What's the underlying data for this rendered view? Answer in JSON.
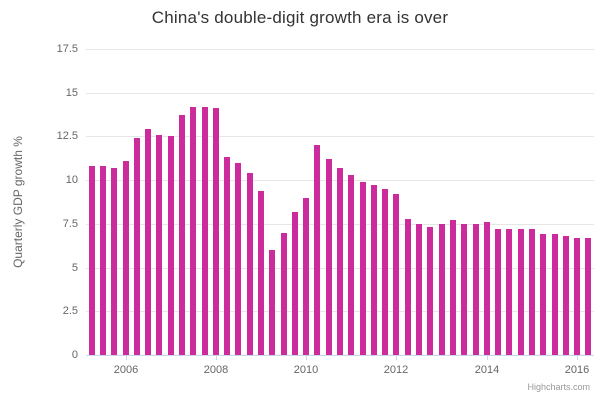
{
  "chart_data": {
    "type": "bar",
    "title": "China's double-digit growth era is over",
    "xlabel": "",
    "ylabel": "Quarterly GDP growth %",
    "ylim": [
      0,
      17.5
    ],
    "grid": true,
    "legend": "none",
    "bar_color": "#cc2b9c",
    "y_tick_labels": [
      "0",
      "2.5",
      "5",
      "7.5",
      "10",
      "12.5",
      "15",
      "17.5"
    ],
    "y_tick_values": [
      0,
      2.5,
      5,
      7.5,
      10,
      12.5,
      15,
      17.5
    ],
    "x_tick_labels": [
      "2006",
      "2008",
      "2010",
      "2012",
      "2014",
      "2016"
    ],
    "x_tick_bar_index": [
      3,
      11,
      19,
      27,
      35,
      43
    ],
    "categories": [
      "2005 Q1",
      "2005 Q2",
      "2005 Q3",
      "2005 Q4",
      "2006 Q1",
      "2006 Q2",
      "2006 Q3",
      "2006 Q4",
      "2007 Q1",
      "2007 Q2",
      "2007 Q3",
      "2007 Q4",
      "2008 Q1",
      "2008 Q2",
      "2008 Q3",
      "2008 Q4",
      "2009 Q1",
      "2009 Q2",
      "2009 Q3",
      "2009 Q4",
      "2010 Q1",
      "2010 Q2",
      "2010 Q3",
      "2010 Q4",
      "2011 Q1",
      "2011 Q2",
      "2011 Q3",
      "2011 Q4",
      "2012 Q1",
      "2012 Q2",
      "2012 Q3",
      "2012 Q4",
      "2013 Q1",
      "2013 Q2",
      "2013 Q3",
      "2013 Q4",
      "2014 Q1",
      "2014 Q2",
      "2014 Q3",
      "2014 Q4",
      "2015 Q1",
      "2015 Q2",
      "2015 Q3",
      "2015 Q4",
      "2016 Q1"
    ],
    "values": [
      10.8,
      10.8,
      10.7,
      11.1,
      12.4,
      12.9,
      12.6,
      12.5,
      13.7,
      14.2,
      14.2,
      14.1,
      11.3,
      11.0,
      10.4,
      9.4,
      6.0,
      7.0,
      8.2,
      9.0,
      12.0,
      11.2,
      10.7,
      10.3,
      9.9,
      9.7,
      9.5,
      9.2,
      7.8,
      7.5,
      7.3,
      7.5,
      7.7,
      7.5,
      7.5,
      7.6,
      7.2,
      7.2,
      7.2,
      7.2,
      6.9,
      6.9,
      6.8,
      6.7,
      6.7
    ],
    "credit": "Highcharts.com"
  }
}
